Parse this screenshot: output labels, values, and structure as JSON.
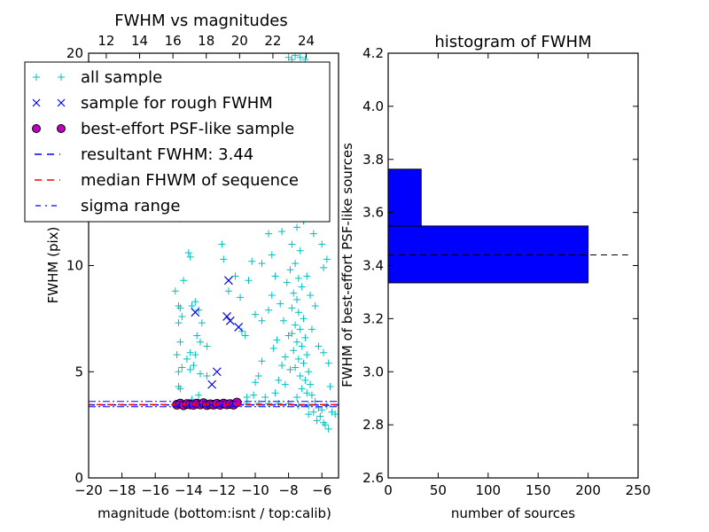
{
  "chart_data": [
    {
      "type": "scatter",
      "title": "FWHM vs magnitudes",
      "xlabel": "magnitude (bottom:isnt / top:calib)",
      "ylabel": "FWHM (pix)",
      "xlim": [
        -20,
        -5
      ],
      "ylim": [
        0,
        20
      ],
      "xticks": [
        -20,
        -18,
        -16,
        -14,
        -12,
        -10,
        -8,
        -6
      ],
      "xtick_labels": [
        "−20",
        "−18",
        "−16",
        "−14",
        "−12",
        "−10",
        "−8",
        "−6"
      ],
      "yticks": [
        0,
        5,
        10,
        20
      ],
      "ytick_labels": [
        "0",
        "5",
        "10",
        "20"
      ],
      "top_axis": {
        "offset": 30.94,
        "ticks": [
          12,
          14,
          16,
          18,
          20,
          22,
          24
        ],
        "tick_labels": [
          "12",
          "14",
          "16",
          "18",
          "20",
          "22",
          "24"
        ]
      },
      "legend_placement": "upper-left",
      "legend": [
        {
          "label": "all sample",
          "marker": "plus",
          "color": "#00bfbf"
        },
        {
          "label": "sample for rough FWHM",
          "marker": "x",
          "color": "#0000ff"
        },
        {
          "label": "best-effort PSF-like sample",
          "marker": "circle",
          "color": "#bf00bf"
        },
        {
          "label": "resultant FWHM: 3.44",
          "marker": "dashed",
          "color": "#0000ff"
        },
        {
          "label": "median FHWM of sequence",
          "marker": "dashed",
          "color": "#ff0000"
        },
        {
          "label": "sigma range",
          "marker": "dashdot",
          "color": "#0000ff"
        }
      ],
      "resultant_fwhm": 3.44,
      "median_fwhm": 3.45,
      "sigma_range": [
        3.35,
        3.6
      ],
      "all_sample": [
        [
          -14.8,
          8.8
        ],
        [
          -14.6,
          8.1
        ],
        [
          -14.5,
          8.0
        ],
        [
          -14.4,
          7.6
        ],
        [
          -14.6,
          7.3
        ],
        [
          -14.5,
          6.4
        ],
        [
          -14.7,
          5.8
        ],
        [
          -14.4,
          5.2
        ],
        [
          -14.6,
          5.0
        ],
        [
          -14.5,
          4.2
        ],
        [
          -14.6,
          4.3
        ],
        [
          -14.3,
          9.3
        ],
        [
          -14.5,
          12.2
        ],
        [
          -14.0,
          10.6
        ],
        [
          -13.9,
          10.4
        ],
        [
          -13.6,
          8.3
        ],
        [
          -13.8,
          8.1
        ],
        [
          -13.4,
          7.9
        ],
        [
          -13.2,
          7.3
        ],
        [
          -13.5,
          6.7
        ],
        [
          -13.3,
          6.4
        ],
        [
          -13.9,
          5.9
        ],
        [
          -13.6,
          5.8
        ],
        [
          -14.1,
          5.6
        ],
        [
          -13.7,
          5.3
        ],
        [
          -13.9,
          5.1
        ],
        [
          -13.3,
          4.9
        ],
        [
          -12.9,
          4.8
        ],
        [
          -12.9,
          6.2
        ],
        [
          -13.8,
          3.7
        ],
        [
          -13.4,
          3.9
        ],
        [
          -12.0,
          11.0
        ],
        [
          -11.9,
          10.3
        ],
        [
          -11.2,
          9.5
        ],
        [
          -10.9,
          8.5
        ],
        [
          -11.6,
          8.8
        ],
        [
          -10.8,
          6.9
        ],
        [
          -10.6,
          6.7
        ],
        [
          -10.2,
          10.2
        ],
        [
          -10.4,
          9.3
        ],
        [
          -10.0,
          7.7
        ],
        [
          -9.6,
          7.4
        ],
        [
          -9.6,
          5.5
        ],
        [
          -9.8,
          4.8
        ],
        [
          -10.0,
          4.5
        ],
        [
          -10.1,
          3.9
        ],
        [
          -10.5,
          3.8
        ],
        [
          -9.4,
          3.8
        ],
        [
          -9.6,
          10.1
        ],
        [
          -9.2,
          11.5
        ],
        [
          -9.0,
          10.5
        ],
        [
          -9.0,
          8.6
        ],
        [
          -9.2,
          7.9
        ],
        [
          -8.6,
          12.8
        ],
        [
          -8.4,
          11.6
        ],
        [
          -8.8,
          9.5
        ],
        [
          -8.5,
          8.2
        ],
        [
          -8.7,
          6.5
        ],
        [
          -8.9,
          6.1
        ],
        [
          -8.2,
          5.7
        ],
        [
          -8.4,
          5.3
        ],
        [
          -8.6,
          4.6
        ],
        [
          -8.8,
          4.0
        ],
        [
          -8.0,
          19.8
        ],
        [
          -7.8,
          19.7
        ],
        [
          -7.6,
          19.9
        ],
        [
          -7.3,
          19.8
        ],
        [
          -7.0,
          19.7
        ],
        [
          -7.9,
          13.5
        ],
        [
          -7.7,
          12.6
        ],
        [
          -7.5,
          11.8
        ],
        [
          -7.8,
          11.0
        ],
        [
          -7.3,
          10.7
        ],
        [
          -7.6,
          10.1
        ],
        [
          -7.9,
          9.8
        ],
        [
          -7.4,
          9.4
        ],
        [
          -7.2,
          9.0
        ],
        [
          -7.7,
          8.7
        ],
        [
          -7.5,
          8.4
        ],
        [
          -7.8,
          8.0
        ],
        [
          -7.4,
          7.8
        ],
        [
          -7.1,
          7.5
        ],
        [
          -7.6,
          7.2
        ],
        [
          -7.3,
          7.0
        ],
        [
          -7.8,
          6.8
        ],
        [
          -7.0,
          6.6
        ],
        [
          -7.5,
          6.4
        ],
        [
          -7.2,
          6.2
        ],
        [
          -7.7,
          6.0
        ],
        [
          -6.9,
          5.8
        ],
        [
          -7.4,
          5.6
        ],
        [
          -7.1,
          5.4
        ],
        [
          -7.6,
          5.2
        ],
        [
          -6.8,
          5.0
        ],
        [
          -7.3,
          4.8
        ],
        [
          -7.0,
          4.6
        ],
        [
          -6.7,
          4.4
        ],
        [
          -7.2,
          4.2
        ],
        [
          -6.9,
          4.0
        ],
        [
          -6.6,
          3.9
        ],
        [
          -7.5,
          3.8
        ],
        [
          -6.4,
          3.6
        ],
        [
          -6.2,
          3.3
        ],
        [
          -6.5,
          3.1
        ],
        [
          -6.8,
          3.0
        ],
        [
          -6.1,
          2.9
        ],
        [
          -6.3,
          2.7
        ],
        [
          -5.9,
          2.6
        ],
        [
          -5.6,
          2.3
        ],
        [
          -5.8,
          2.5
        ],
        [
          -6.0,
          3.2
        ],
        [
          -5.7,
          3.4
        ],
        [
          -5.4,
          3.1
        ],
        [
          -5.2,
          3.0
        ],
        [
          -5.5,
          4.3
        ],
        [
          -5.6,
          5.4
        ],
        [
          -5.9,
          5.9
        ],
        [
          -6.2,
          6.2
        ],
        [
          -6.4,
          8.1
        ],
        [
          -6.6,
          7.0
        ],
        [
          -5.7,
          10.3
        ],
        [
          -5.9,
          9.9
        ],
        [
          -6.0,
          11.0
        ],
        [
          -6.5,
          11.5
        ],
        [
          -8.1,
          9.2
        ],
        [
          -8.3,
          7.4
        ],
        [
          -8.0,
          6.7
        ],
        [
          -7.9,
          5.1
        ],
        [
          -8.2,
          4.4
        ],
        [
          -6.7,
          8.6
        ],
        [
          -6.9,
          9.5
        ],
        [
          -7.1,
          12.1
        ],
        [
          -6.6,
          12.6
        ],
        [
          -10.5,
          3.5
        ],
        [
          -9.8,
          3.5
        ],
        [
          -9.2,
          3.5
        ],
        [
          -8.6,
          3.5
        ],
        [
          -8.0,
          3.5
        ],
        [
          -7.4,
          3.4
        ],
        [
          -6.8,
          3.4
        ]
      ],
      "rough_sample": [
        [
          -13.6,
          7.8
        ],
        [
          -11.7,
          7.6
        ],
        [
          -11.5,
          7.4
        ],
        [
          -11.0,
          7.1
        ],
        [
          -11.6,
          9.3
        ],
        [
          -12.3,
          5.0
        ],
        [
          -12.6,
          4.4
        ]
      ],
      "psf_sample": [
        [
          -14.7,
          3.45
        ],
        [
          -14.5,
          3.5
        ],
        [
          -14.3,
          3.42
        ],
        [
          -14.1,
          3.48
        ],
        [
          -13.9,
          3.46
        ],
        [
          -13.7,
          3.44
        ],
        [
          -13.5,
          3.5
        ],
        [
          -13.3,
          3.46
        ],
        [
          -13.1,
          3.52
        ],
        [
          -12.9,
          3.43
        ],
        [
          -12.7,
          3.47
        ],
        [
          -12.5,
          3.45
        ],
        [
          -12.3,
          3.49
        ],
        [
          -12.1,
          3.44
        ],
        [
          -11.9,
          3.5
        ],
        [
          -11.7,
          3.46
        ],
        [
          -11.5,
          3.48
        ],
        [
          -11.3,
          3.45
        ],
        [
          -11.1,
          3.55
        ]
      ]
    },
    {
      "type": "bar",
      "orientation": "horizontal",
      "title": "histogram of FWHM",
      "xlabel": "number of sources",
      "ylabel": "FWHM of best-effort PSF-like sources",
      "xlim": [
        0,
        250
      ],
      "ylim": [
        2.6,
        4.2
      ],
      "xticks": [
        0,
        50,
        100,
        150,
        200,
        250
      ],
      "xtick_labels": [
        "0",
        "50",
        "100",
        "150",
        "200",
        "250"
      ],
      "yticks": [
        2.6,
        2.8,
        3.0,
        3.2,
        3.4,
        3.6,
        3.8,
        4.0,
        4.2
      ],
      "ytick_labels": [
        "2.6",
        "2.8",
        "3.0",
        "3.2",
        "3.4",
        "3.6",
        "3.8",
        "4.0",
        "4.2"
      ],
      "bins": [
        [
          3.335,
          3.549
        ],
        [
          3.549,
          3.763
        ]
      ],
      "values": [
        200,
        33
      ],
      "bar_color": "#0000ff",
      "reference_line": {
        "value": 3.44,
        "extent": 240
      }
    }
  ]
}
